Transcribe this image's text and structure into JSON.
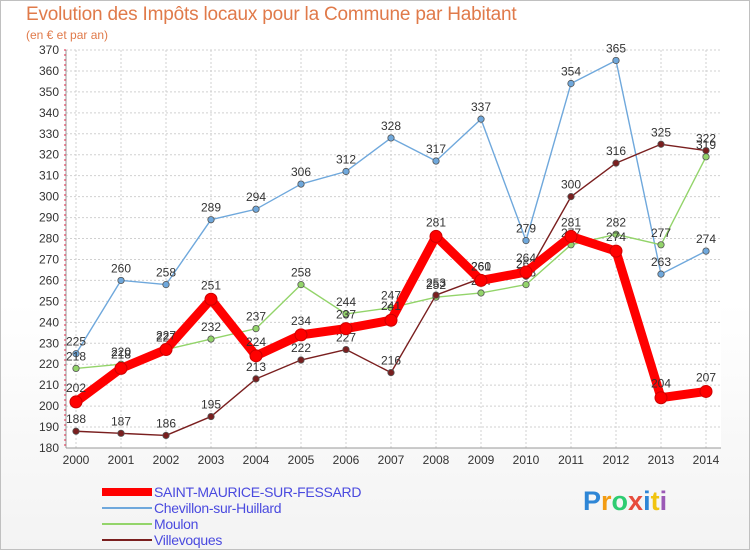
{
  "header": {
    "title": "Evolution des Impôts locaux pour la Commune par Habitant",
    "subtitle": "(en € et par an)"
  },
  "logo": {
    "text": "Proxiti",
    "letters": [
      "P",
      "r",
      "o",
      "x",
      "i",
      "t",
      "i"
    ],
    "colors": [
      "#2e86d6",
      "#f39c12",
      "#2ecc71",
      "#e74c3c",
      "#2e86d6",
      "#f1c40f",
      "#9b59b6"
    ]
  },
  "chart_data": {
    "type": "line",
    "x": [
      2000,
      2001,
      2002,
      2003,
      2004,
      2005,
      2006,
      2007,
      2008,
      2009,
      2010,
      2011,
      2012,
      2013,
      2014
    ],
    "ylim": [
      180,
      370
    ],
    "yticks": [
      180,
      190,
      200,
      210,
      220,
      230,
      240,
      250,
      260,
      270,
      280,
      290,
      300,
      310,
      320,
      330,
      340,
      350,
      360,
      370
    ],
    "grid": true,
    "legend_position": "bottom-left",
    "series": [
      {
        "name": "SAINT-MAURICE-SUR-FESSARD",
        "color": "#ff0000",
        "values": [
          202,
          218,
          227,
          251,
          224,
          234,
          237,
          241,
          281,
          260,
          264,
          281,
          274,
          204,
          207
        ]
      },
      {
        "name": "Chevillon-sur-Huillard",
        "color": "#6fa8dc",
        "values": [
          225,
          260,
          258,
          289,
          294,
          306,
          312,
          328,
          317,
          337,
          279,
          354,
          365,
          263,
          274
        ]
      },
      {
        "name": "Moulon",
        "color": "#93d46a",
        "values": [
          218,
          220,
          227,
          232,
          237,
          258,
          244,
          247,
          252,
          254,
          258,
          277,
          282,
          277,
          319
        ]
      },
      {
        "name": "Villevoques",
        "color": "#7a1f1f",
        "values": [
          188,
          187,
          186,
          195,
          213,
          222,
          227,
          216,
          253,
          261,
          262,
          300,
          316,
          325,
          322
        ]
      }
    ]
  }
}
